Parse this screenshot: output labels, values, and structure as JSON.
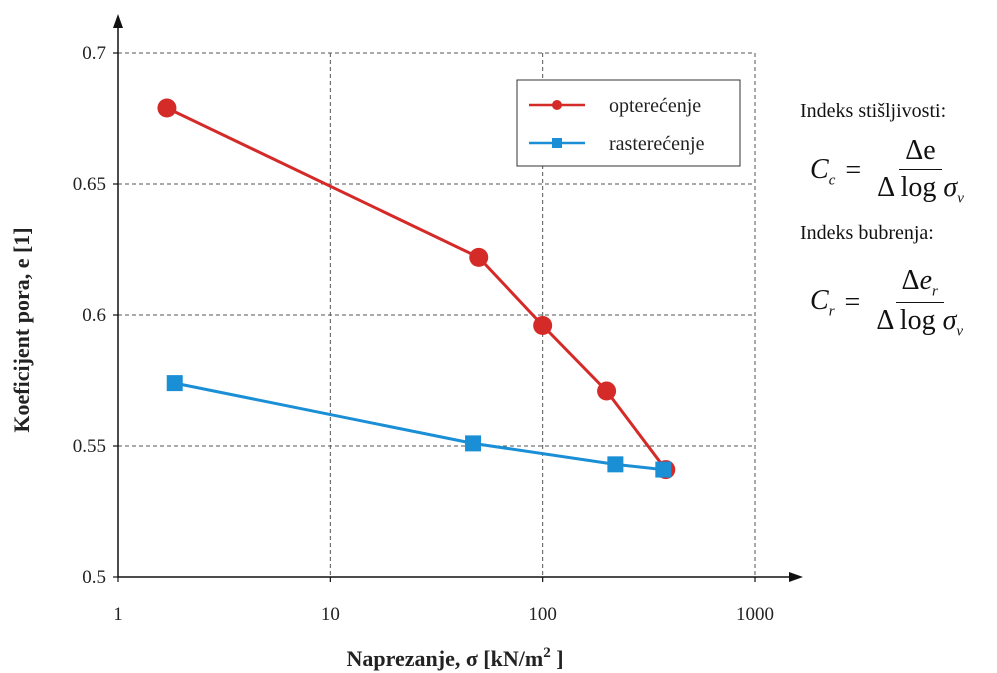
{
  "chart_data": {
    "type": "line",
    "xlabel": "Naprezanje,  σ  [kN/m",
    "xlabel_sup": "2",
    "xlabel_end": " ]",
    "ylabel": "Koeficijent pora,  e  [1]",
    "xscale": "log",
    "xlim": [
      1,
      1000
    ],
    "ylim": [
      0.5,
      0.7
    ],
    "x_ticks": [
      1,
      10,
      100,
      1000
    ],
    "x_tick_labels": [
      "1",
      "10",
      "100",
      "1000"
    ],
    "y_ticks": [
      0.5,
      0.55,
      0.6,
      0.65,
      0.7
    ],
    "y_tick_labels": [
      "0.5",
      "0.55",
      "0.6",
      "0.65",
      "0.7"
    ],
    "grid": true,
    "legend_position": "top-right",
    "series": [
      {
        "name": "opterećenje",
        "color": "#d42a28",
        "marker": "circle",
        "x": [
          1.7,
          50,
          100,
          200,
          380
        ],
        "y": [
          0.679,
          0.622,
          0.596,
          0.571,
          0.541
        ]
      },
      {
        "name": "rasterećenje",
        "color": "#1a8fd6",
        "marker": "square",
        "x": [
          1.85,
          47,
          220,
          370
        ],
        "y": [
          0.574,
          0.551,
          0.543,
          0.541
        ]
      }
    ]
  },
  "side": {
    "compress_label": "Indeks stišljivosti:",
    "swell_label": "Indeks bubrenja:",
    "cc": {
      "lhs": "C",
      "lhs_sub": "c",
      "eq": "=",
      "num": "Δe",
      "den_pre": "Δ log ",
      "den_sym": "σ",
      "den_sub": "v"
    },
    "cr": {
      "lhs": "C",
      "lhs_sub": "r",
      "eq": "=",
      "num_pre": "Δ",
      "num_sym": "e",
      "num_sub": "r",
      "den_pre": "Δ log ",
      "den_sym": "σ",
      "den_sub": "v"
    }
  }
}
